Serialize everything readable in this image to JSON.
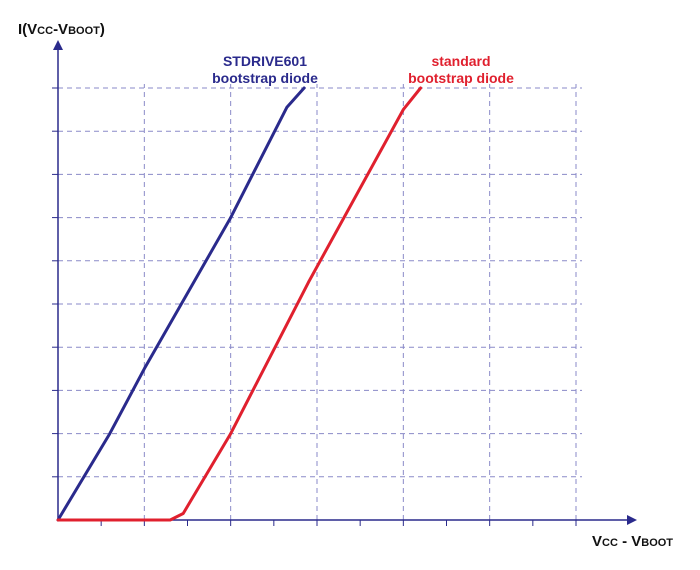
{
  "chart_data": {
    "type": "line",
    "title": "",
    "ylabel": {
      "main": "I(V",
      "sub1": "CC",
      "mid": "-V",
      "sub2": "BOOT",
      "end": ")"
    },
    "xlabel": {
      "pre": "V",
      "sub1": "CC",
      "mid": " - V",
      "sub2": "BOOT"
    },
    "x_grid_count": 6,
    "y_grid_count": 10,
    "xlim": [
      0,
      6
    ],
    "ylim": [
      0,
      10
    ],
    "grid": true,
    "series": [
      {
        "name_lines": [
          "STDRIVE601",
          "bootstrap diode"
        ],
        "color": "#2a2a8c",
        "points": [
          [
            0,
            0
          ],
          [
            0.6,
            2
          ],
          [
            1.0,
            3.5
          ],
          [
            2.0,
            7.0
          ],
          [
            2.65,
            9.55
          ],
          [
            2.85,
            10.0
          ]
        ]
      },
      {
        "name_lines": [
          "standard",
          "bootstrap diode"
        ],
        "color": "#e0202e",
        "points": [
          [
            0,
            0
          ],
          [
            1.3,
            0
          ],
          [
            1.45,
            0.15
          ],
          [
            2.0,
            2.0
          ],
          [
            2.9,
            5.5
          ],
          [
            4.0,
            9.5
          ],
          [
            4.2,
            10.0
          ]
        ]
      }
    ]
  }
}
